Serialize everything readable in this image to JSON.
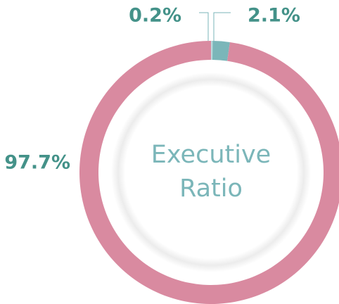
{
  "chart_data": {
    "type": "donut",
    "categories": [
      null,
      null,
      null
    ],
    "values": [
      0.2,
      2.1,
      97.7
    ],
    "value_labels": [
      "0.2%",
      "2.1%",
      "97.7%"
    ],
    "colors": [
      "#b9dadd",
      "#7bb6b9",
      "#d98aa0"
    ],
    "center_text": [
      "Executive",
      "Ratio"
    ]
  }
}
